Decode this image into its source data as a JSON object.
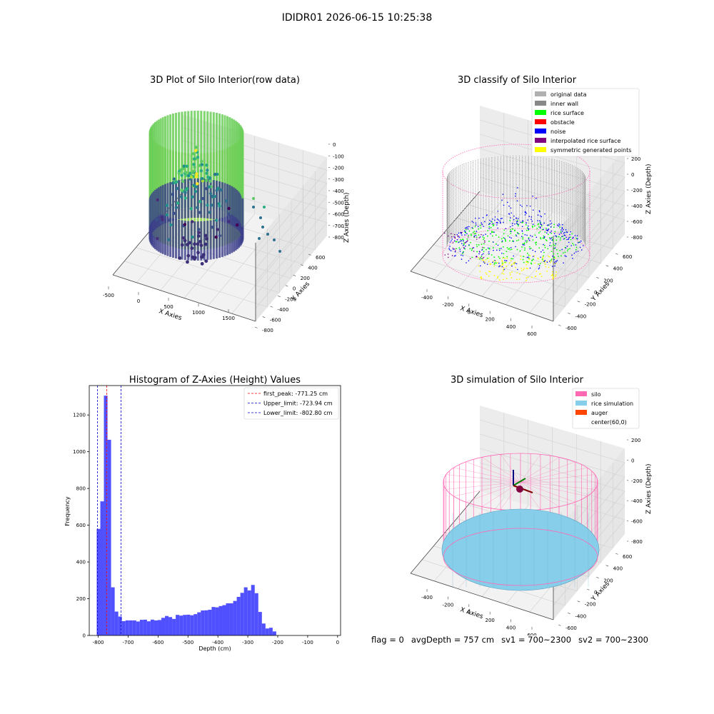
{
  "figure_title": "IDIDR01 2026-06-15 10:25:38",
  "footer": {
    "flag": "flag = 0",
    "avg_depth": "avgDepth = 757 cm",
    "sv1": "sv1 = 700~2300",
    "sv2": "sv2 = 700~2300"
  },
  "colors": {
    "histogram_bar": "#5050ff",
    "first_peak_line": "#ff0000",
    "limit_line": "#0000cc",
    "original_data": "#b0b0b0",
    "inner_wall": "#888888",
    "rice_surface": "#00ff00",
    "obstacle": "#ff0000",
    "noise": "#0000ff",
    "interpolated_rice_surface": "#800080",
    "symmetric_generated_points": "#ffff00",
    "silo": "#ff69b4",
    "rice_simulation": "#87ceeb",
    "auger": "#ff4500"
  },
  "chart_data": [
    {
      "type": "scatter",
      "title": "3D Plot of Silo Interior(row data)",
      "xlabel": "X Axies",
      "ylabel": "Y Axies",
      "zlabel": "Z Axies (Depth)",
      "x_ticks": [
        "-500",
        "0",
        "500",
        "1000",
        "1500"
      ],
      "y_ticks": [
        "600",
        "400",
        "200",
        "0",
        "-200",
        "-400",
        "-600",
        "-800"
      ],
      "z_ticks": [
        "0",
        "-100",
        "-200",
        "-300",
        "-400",
        "-500",
        "-600",
        "-700",
        "-800"
      ],
      "colormap": "viridis"
    },
    {
      "type": "scatter",
      "title": "3D classify of Silo Interior",
      "xlabel": "X Axies",
      "ylabel": "Y Axies",
      "zlabel": "Z Axies (Depth)",
      "x_ticks": [
        "-400",
        "-200",
        "0",
        "200",
        "400",
        "600"
      ],
      "y_ticks": [
        "600",
        "400",
        "200",
        "0",
        "-200",
        "-400",
        "-600"
      ],
      "z_ticks": [
        "200",
        "0",
        "-200",
        "-400",
        "-600",
        "-800"
      ],
      "legend": [
        {
          "label": "original data",
          "color": "#b0b0b0"
        },
        {
          "label": "inner wall",
          "color": "#888888"
        },
        {
          "label": "rice surface",
          "color": "#00ff00"
        },
        {
          "label": "obstacle",
          "color": "#ff0000"
        },
        {
          "label": "noise",
          "color": "#0000ff"
        },
        {
          "label": "interpolated rice surface",
          "color": "#800080"
        },
        {
          "label": "symmetric generated points",
          "color": "#ffff00"
        }
      ]
    },
    {
      "type": "bar",
      "title": "Histogram of Z-Axies (Height) Values",
      "xlabel": "Depth (cm)",
      "ylabel": "Frequency",
      "xlim": [
        -830,
        10
      ],
      "ylim": [
        0,
        1360
      ],
      "x_ticks": [
        -800,
        -700,
        -600,
        -500,
        -400,
        -300,
        -200,
        -100,
        0
      ],
      "y_ticks": [
        0,
        200,
        400,
        600,
        800,
        1000,
        1200
      ],
      "bin_start": -805,
      "bin_width": 12,
      "values": [
        580,
        730,
        1305,
        1065,
        262,
        130,
        103,
        78,
        82,
        82,
        82,
        76,
        85,
        86,
        77,
        86,
        82,
        84,
        96,
        106,
        100,
        90,
        112,
        108,
        112,
        113,
        110,
        116,
        126,
        136,
        137,
        140,
        155,
        153,
        160,
        165,
        175,
        175,
        188,
        210,
        232,
        262,
        245,
        275,
        230,
        128,
        65,
        38,
        42,
        22
      ],
      "lines": [
        {
          "label": "first_peak: -771.25 cm",
          "x": -771.25,
          "color": "#ff0000"
        },
        {
          "label": "Upper_limit: -723.94 cm",
          "x": -723.94,
          "color": "#0000cc"
        },
        {
          "label": "Lower_limit: -802.80 cm",
          "x": -802.8,
          "color": "#0000cc"
        }
      ],
      "legend_position": "upper right"
    },
    {
      "type": "scatter",
      "title": "3D simulation of Silo Interior",
      "xlabel": "X Axies",
      "ylabel": "Y Axies",
      "zlabel": "Z Axies (Depth)",
      "x_ticks": [
        "-400",
        "-200",
        "0",
        "200",
        "400",
        "600"
      ],
      "y_ticks": [
        "600",
        "400",
        "200",
        "0",
        "-200",
        "-400",
        "-600"
      ],
      "z_ticks": [
        "200",
        "0",
        "-200",
        "-400",
        "-600",
        "-800"
      ],
      "legend": [
        {
          "label": "silo",
          "color": "#ff69b4"
        },
        {
          "label": "rice simulation",
          "color": "#87ceeb"
        },
        {
          "label": "auger",
          "color": "#ff4500"
        },
        {
          "label": "center(60,0)",
          "color": ""
        }
      ]
    }
  ]
}
